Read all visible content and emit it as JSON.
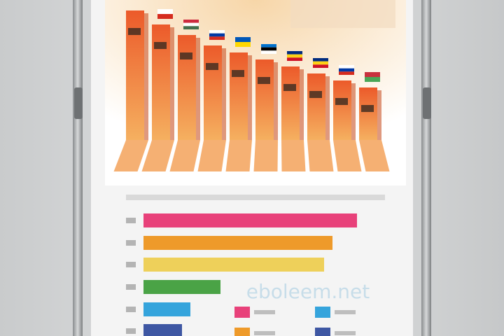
{
  "watermark": "eboleem.net"
}
